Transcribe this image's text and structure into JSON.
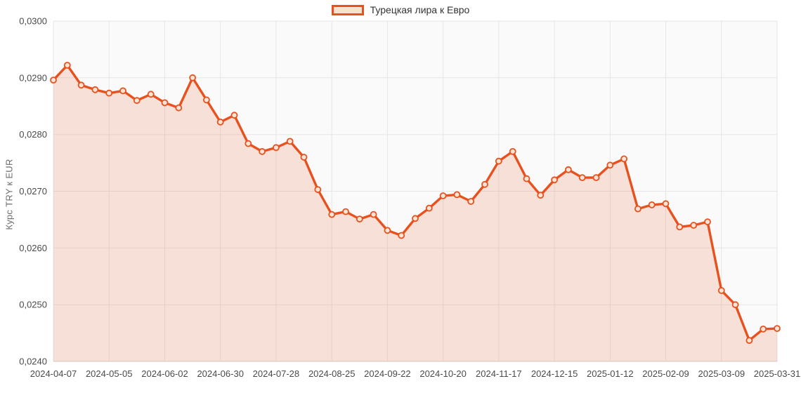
{
  "chart_data": {
    "type": "area",
    "title": "",
    "ylabel": "Курс TRY к EUR",
    "legend_position": "top-center",
    "grid": true,
    "ylim": [
      0.024,
      0.03
    ],
    "y_ticks": {
      "values": [
        0.03,
        0.029,
        0.028,
        0.027,
        0.026,
        0.025,
        0.024
      ],
      "labels": [
        "0,0300",
        "0,0290",
        "0,0280",
        "0,0270",
        "0,0260",
        "0,0250",
        "0,0240"
      ]
    },
    "x_ticks": [
      {
        "i": 0,
        "label": "2024-04-07"
      },
      {
        "i": 4,
        "label": "2024-05-05"
      },
      {
        "i": 8,
        "label": "2024-06-02"
      },
      {
        "i": 12,
        "label": "2024-06-30"
      },
      {
        "i": 16,
        "label": "2024-07-28"
      },
      {
        "i": 20,
        "label": "2024-08-25"
      },
      {
        "i": 24,
        "label": "2024-09-22"
      },
      {
        "i": 28,
        "label": "2024-10-20"
      },
      {
        "i": 32,
        "label": "2024-11-17"
      },
      {
        "i": 36,
        "label": "2024-12-15"
      },
      {
        "i": 40,
        "label": "2025-01-12"
      },
      {
        "i": 44,
        "label": "2025-02-09"
      },
      {
        "i": 48,
        "label": "2025-03-09"
      },
      {
        "i": 52,
        "label": "2025-03-31"
      }
    ],
    "series": [
      {
        "name": "Турецкая лира к Евро",
        "x": [
          "2024-04-07",
          "2024-04-14",
          "2024-04-21",
          "2024-04-28",
          "2024-05-05",
          "2024-05-12",
          "2024-05-19",
          "2024-05-26",
          "2024-06-02",
          "2024-06-09",
          "2024-06-16",
          "2024-06-23",
          "2024-06-30",
          "2024-07-07",
          "2024-07-14",
          "2024-07-21",
          "2024-07-28",
          "2024-08-04",
          "2024-08-11",
          "2024-08-18",
          "2024-08-25",
          "2024-09-01",
          "2024-09-08",
          "2024-09-15",
          "2024-09-22",
          "2024-09-29",
          "2024-10-06",
          "2024-10-13",
          "2024-10-20",
          "2024-10-27",
          "2024-11-03",
          "2024-11-10",
          "2024-11-17",
          "2024-11-24",
          "2024-12-01",
          "2024-12-08",
          "2024-12-15",
          "2024-12-22",
          "2024-12-29",
          "2025-01-05",
          "2025-01-12",
          "2025-01-19",
          "2025-01-26",
          "2025-02-02",
          "2025-02-09",
          "2025-02-16",
          "2025-02-23",
          "2025-03-02",
          "2025-03-09",
          "2025-03-16",
          "2025-03-23",
          "2025-03-30",
          "2025-03-31"
        ],
        "values": [
          0.02896,
          0.02922,
          0.02887,
          0.02879,
          0.02873,
          0.02877,
          0.0286,
          0.02871,
          0.02856,
          0.02847,
          0.029,
          0.02861,
          0.02822,
          0.02834,
          0.02784,
          0.0277,
          0.02777,
          0.02788,
          0.0276,
          0.02703,
          0.02659,
          0.02664,
          0.02651,
          0.02659,
          0.02631,
          0.02622,
          0.02652,
          0.0267,
          0.02692,
          0.02694,
          0.02682,
          0.02712,
          0.02753,
          0.0277,
          0.02722,
          0.02693,
          0.0272,
          0.02738,
          0.02724,
          0.02724,
          0.02746,
          0.02757,
          0.02669,
          0.02676,
          0.02678,
          0.02637,
          0.0264,
          0.02646,
          0.02525,
          0.025,
          0.02437,
          0.02457,
          0.02458
        ]
      }
    ],
    "colors": {
      "line": "#e8511e",
      "area_fill": "#f8e1d3",
      "area_fill_rgba": "rgba(232,81,30,0.15)",
      "marker_fill": "#f9e4d6",
      "plot_background": "#fafafa",
      "gridline": "#e6e6e6",
      "axis_line": "#cfcfcf",
      "tick_text": "#4a4a4a",
      "legend_text": "#333333",
      "axis_title_text": "#6b6b6b"
    }
  }
}
